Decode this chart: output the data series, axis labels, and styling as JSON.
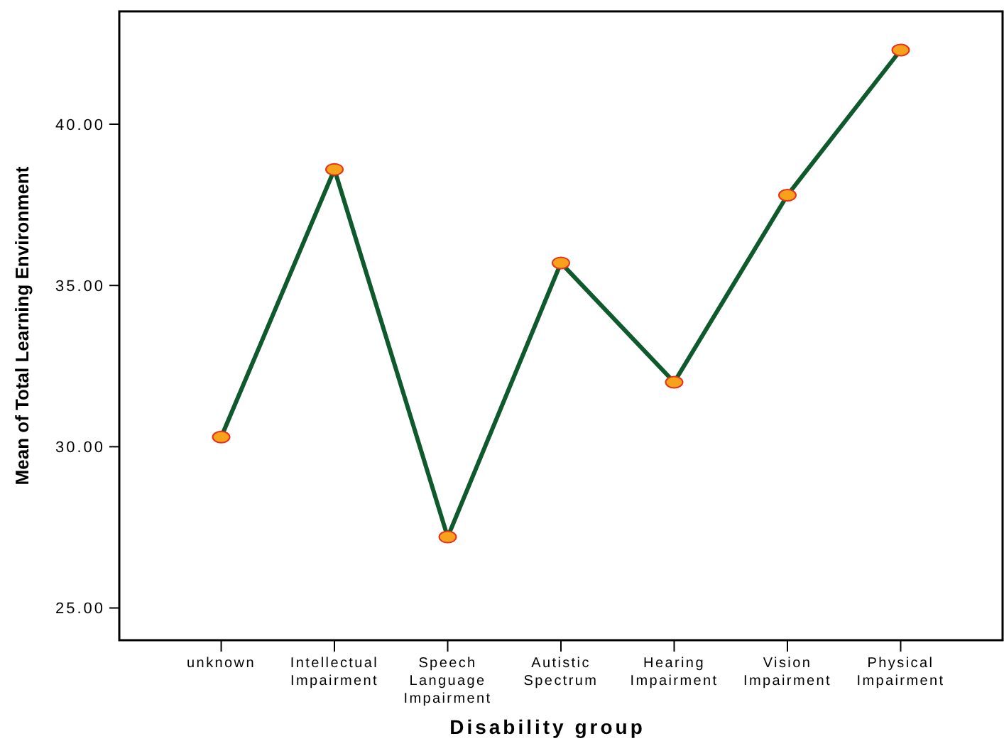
{
  "chart_data": {
    "type": "line",
    "xlabel": "Disability group",
    "ylabel": "Mean of Total Learning Environment",
    "categories": [
      "unknown",
      "Intellectual\nImpairment",
      "Speech\nLanguage\nImpairment",
      "Autistic\nSpectrum",
      "Hearing\nImpairment",
      "Vision\nImpairment",
      "Physical\nImpairment"
    ],
    "series": [
      {
        "color": "#0f5a2d",
        "values": [
          30.3,
          38.6,
          27.2,
          35.7,
          32.0,
          37.8,
          42.3
        ]
      }
    ],
    "ylim": [
      24.0,
      43.5
    ],
    "yticks": [
      {
        "value": 25,
        "label": "25.00"
      },
      {
        "value": 30,
        "label": "30.00"
      },
      {
        "value": 35,
        "label": "35.00"
      },
      {
        "value": 40,
        "label": "40.00"
      }
    ],
    "marker": "circle",
    "line_style": "solid"
  }
}
